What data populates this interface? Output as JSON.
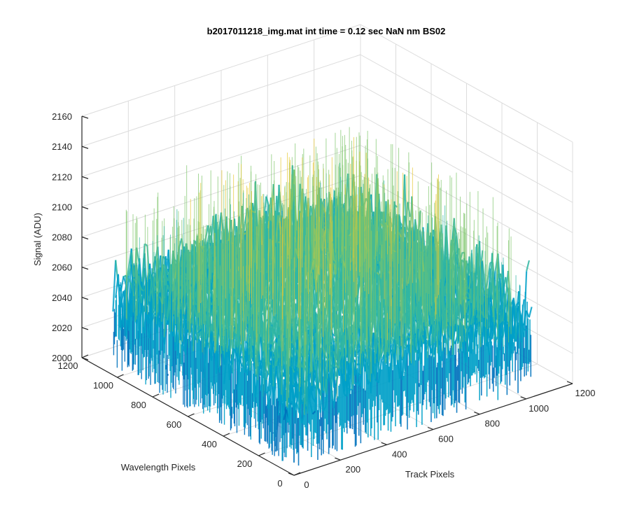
{
  "chart_data": {
    "type": "surface",
    "title": "b2017011218_img.mat int time = 0.12 sec  NaN nm BS02",
    "xlabel": "Track Pixels",
    "ylabel": "Wavelength Pixels",
    "zlabel": "Signal (ADU)",
    "xlim": [
      0,
      1200
    ],
    "ylim": [
      0,
      1200
    ],
    "zlim": [
      2000,
      2160
    ],
    "x_ticks": [
      "0",
      "200",
      "400",
      "600",
      "800",
      "1000",
      "1200"
    ],
    "y_ticks": [
      "0",
      "200",
      "400",
      "600",
      "800",
      "1000",
      "1200"
    ],
    "z_ticks": [
      "2000",
      "2020",
      "2040",
      "2060",
      "2080",
      "2100",
      "2120",
      "2140",
      "2160"
    ],
    "data_extent": {
      "x": [
        0,
        1024
      ],
      "y": [
        0,
        1024
      ]
    },
    "surface_summary": {
      "description": "noisy detector frame",
      "mean_signal": 2060,
      "center_signal": 2085,
      "edge_signal": 2050,
      "min_signal": 2005,
      "max_signal": 2150
    },
    "colormap": [
      "#0072bd",
      "#00a0c8",
      "#31b7a3",
      "#7ec66b",
      "#e6c832"
    ],
    "grid": true
  }
}
